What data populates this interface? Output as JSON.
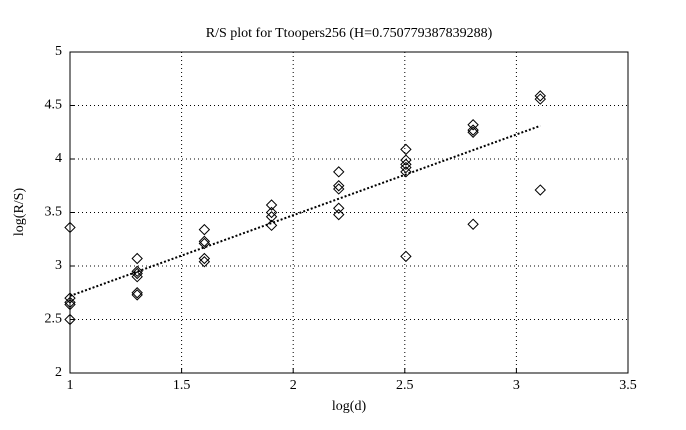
{
  "chart_data": {
    "type": "scatter",
    "title": "R/S plot for Ttoopers256 (H=0.750779387839288)",
    "x_label": "log(d)",
    "y_label": "log(R/S)",
    "xlim": [
      1,
      3.5
    ],
    "xticks": [
      1,
      1.5,
      2,
      2.5,
      3,
      3.5
    ],
    "ylim": [
      2,
      5
    ],
    "yticks": [
      2,
      2.5,
      3,
      3.5,
      4,
      4.5,
      5
    ],
    "grid": true,
    "series": [
      {
        "marker": "diamond",
        "color": "#000000",
        "x": [
          1,
          1,
          1,
          1,
          1,
          1.301,
          1.301,
          1.301,
          1.301,
          1.301,
          1.301,
          1.602,
          1.602,
          1.602,
          1.602,
          1.602,
          1.903,
          1.903,
          1.903,
          1.903,
          2.204,
          2.204,
          2.204,
          2.204,
          2.204,
          2.505,
          2.505,
          2.505,
          2.505,
          2.505,
          2.505,
          2.806,
          2.806,
          2.806,
          2.806,
          3.107,
          3.107,
          3.107
        ],
        "values": [
          3.36,
          2.7,
          2.66,
          2.64,
          2.5,
          3.07,
          2.95,
          2.93,
          2.9,
          2.75,
          2.73,
          3.34,
          3.23,
          3.21,
          3.07,
          3.04,
          3.57,
          3.5,
          3.46,
          3.38,
          3.88,
          3.75,
          3.72,
          3.54,
          3.48,
          4.09,
          3.99,
          3.95,
          3.92,
          3.88,
          3.09,
          4.32,
          4.27,
          4.25,
          3.39,
          4.59,
          4.56,
          3.71
        ]
      },
      {
        "marker": "line",
        "line_style": "dotted",
        "color": "#000000",
        "x": [
          1,
          3.107
        ],
        "values": [
          2.72,
          4.31
        ]
      }
    ]
  }
}
